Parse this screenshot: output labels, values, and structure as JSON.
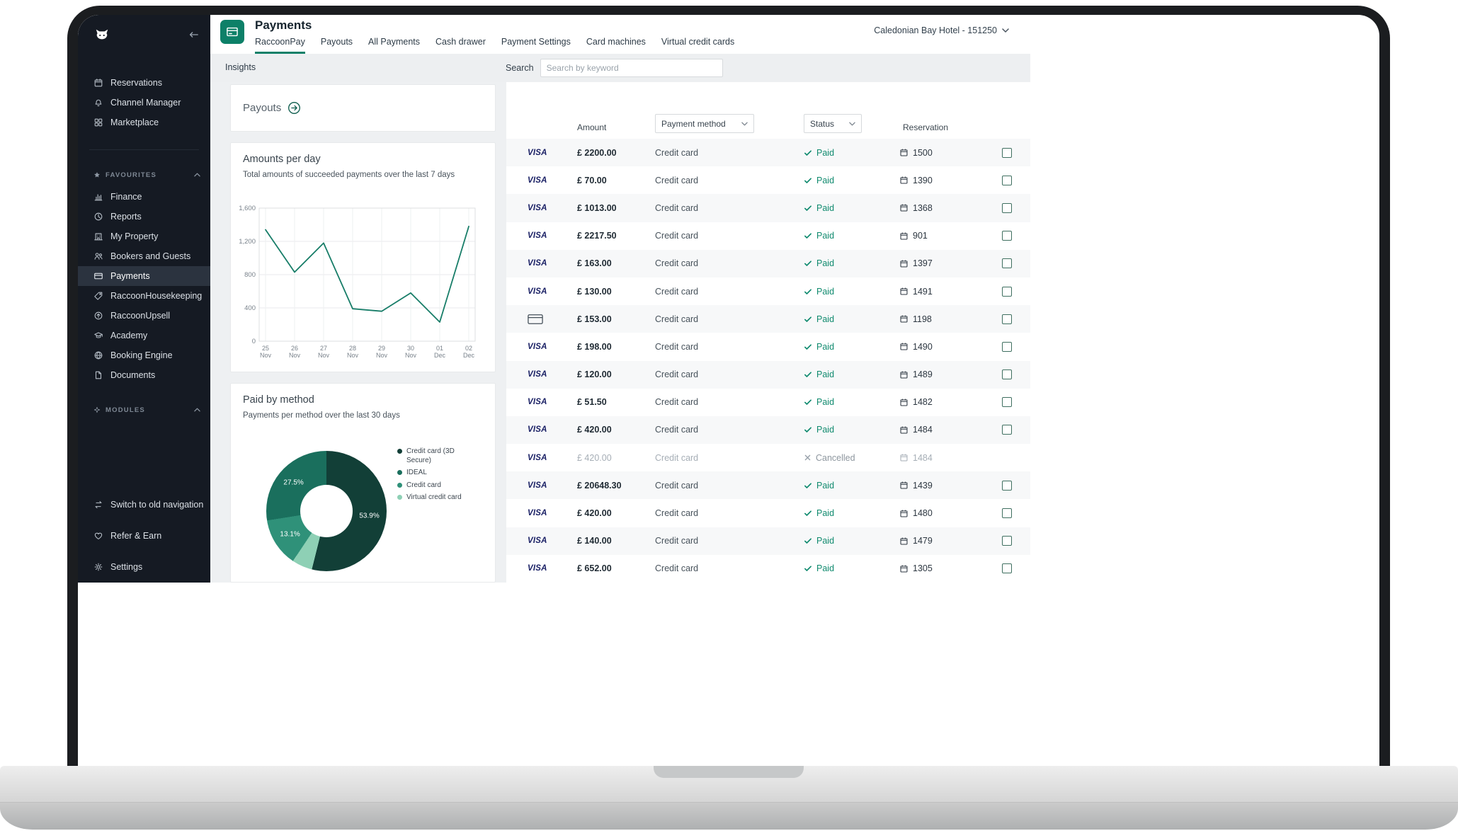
{
  "brand": {
    "teal": "#0d8068",
    "paid_green": "#0f8a6e",
    "sidebar_bg": "#151a23"
  },
  "sidebar": {
    "favourites_header": "FAVOURITES",
    "modules_header": "MODULES",
    "top_items": [
      {
        "label": "Reservations",
        "icon": "calendar"
      },
      {
        "label": "Channel Manager",
        "icon": "bell"
      },
      {
        "label": "Marketplace",
        "icon": "grid"
      }
    ],
    "favourites": [
      {
        "label": "Finance",
        "icon": "finance"
      },
      {
        "label": "Reports",
        "icon": "reports"
      },
      {
        "label": "My Property",
        "icon": "property"
      },
      {
        "label": "Bookers and Guests",
        "icon": "guests"
      },
      {
        "label": "Payments",
        "icon": "payments",
        "active": true
      },
      {
        "label": "RaccoonHousekeeping",
        "icon": "housekeeping"
      },
      {
        "label": "RaccoonUpsell",
        "icon": "upsell"
      },
      {
        "label": "Academy",
        "icon": "academy"
      },
      {
        "label": "Booking Engine",
        "icon": "booking"
      },
      {
        "label": "Documents",
        "icon": "documents"
      }
    ],
    "bottom_items": [
      {
        "label": "Switch to old navigation",
        "icon": "switch"
      },
      {
        "label": "Refer & Earn",
        "icon": "heart"
      },
      {
        "label": "Settings",
        "icon": "gear"
      }
    ]
  },
  "header": {
    "title": "Payments",
    "tabs": [
      "RaccoonPay",
      "Payouts",
      "All Payments",
      "Cash drawer",
      "Payment Settings",
      "Card machines",
      "Virtual credit cards"
    ],
    "active_tab": "RaccoonPay",
    "account": "Caledonian Bay Hotel - 151250"
  },
  "subbar": {
    "insights_label": "Insights",
    "search_label": "Search",
    "search_placeholder": "Search by keyword"
  },
  "insights": {
    "payouts_title": "Payouts"
  },
  "chart_data": [
    {
      "type": "line",
      "title": "Amounts per day",
      "subtitle": "Total amounts of succeeded payments over the last 7 days",
      "x": [
        "25 Nov",
        "26 Nov",
        "27 Nov",
        "28 Nov",
        "29 Nov",
        "30 Nov",
        "01 Dec",
        "02 Dec"
      ],
      "values": [
        1340,
        830,
        1180,
        390,
        360,
        580,
        230,
        1380
      ],
      "ylim": [
        0,
        1600
      ],
      "yticks": [
        0,
        400,
        800,
        1200,
        1600
      ],
      "ytick_labels": [
        "0",
        "400",
        "800",
        "1,200",
        "1,600"
      ],
      "line_color": "#177d68",
      "grid": true
    },
    {
      "type": "pie",
      "title": "Paid by method",
      "subtitle": "Payments per method over the last 30 days",
      "donut": true,
      "segments": [
        {
          "label": "Credit card (3D Secure)",
          "value": 53.9,
          "color": "#123f37",
          "show_label": true
        },
        {
          "label": "IDEAL",
          "value": 27.5,
          "color": "#1a6f5d",
          "show_label": true
        },
        {
          "label": "Credit card",
          "value": 13.1,
          "color": "#2f9179",
          "show_label": true
        },
        {
          "label": "Virtual credit card",
          "value": 5.5,
          "color": "#8ed0b5",
          "show_label": false
        }
      ],
      "draw_order": [
        0,
        3,
        2,
        1
      ],
      "legend_position": "right"
    }
  ],
  "table": {
    "columns": {
      "amount": "Amount",
      "method_filter": "Payment method",
      "status_filter": "Status",
      "reservation": "Reservation"
    },
    "rows": [
      {
        "card": "visa",
        "amount": "£ 2200.00",
        "method": "Credit card",
        "status": "Paid",
        "reservation": "1500"
      },
      {
        "card": "visa",
        "amount": "£ 70.00",
        "method": "Credit card",
        "status": "Paid",
        "reservation": "1390"
      },
      {
        "card": "visa",
        "amount": "£ 1013.00",
        "method": "Credit card",
        "status": "Paid",
        "reservation": "1368"
      },
      {
        "card": "visa",
        "amount": "£ 2217.50",
        "method": "Credit card",
        "status": "Paid",
        "reservation": "901"
      },
      {
        "card": "visa",
        "amount": "£ 163.00",
        "method": "Credit card",
        "status": "Paid",
        "reservation": "1397"
      },
      {
        "card": "visa",
        "amount": "£ 130.00",
        "method": "Credit card",
        "status": "Paid",
        "reservation": "1491"
      },
      {
        "card": "card",
        "amount": "£ 153.00",
        "method": "Credit card",
        "status": "Paid",
        "reservation": "1198"
      },
      {
        "card": "visa",
        "amount": "£ 198.00",
        "method": "Credit card",
        "status": "Paid",
        "reservation": "1490"
      },
      {
        "card": "visa",
        "amount": "£ 120.00",
        "method": "Credit card",
        "status": "Paid",
        "reservation": "1489"
      },
      {
        "card": "visa",
        "amount": "£ 51.50",
        "method": "Credit card",
        "status": "Paid",
        "reservation": "1482"
      },
      {
        "card": "visa",
        "amount": "£ 420.00",
        "method": "Credit card",
        "status": "Paid",
        "reservation": "1484"
      },
      {
        "card": "visa",
        "amount": "£ 420.00",
        "method": "Credit card",
        "status": "Cancelled",
        "reservation": "1484"
      },
      {
        "card": "visa",
        "amount": "£ 20648.30",
        "method": "Credit card",
        "status": "Paid",
        "reservation": "1439"
      },
      {
        "card": "visa",
        "amount": "£ 420.00",
        "method": "Credit card",
        "status": "Paid",
        "reservation": "1480"
      },
      {
        "card": "visa",
        "amount": "£ 140.00",
        "method": "Credit card",
        "status": "Paid",
        "reservation": "1479"
      },
      {
        "card": "visa",
        "amount": "£ 652.00",
        "method": "Credit card",
        "status": "Paid",
        "reservation": "1305"
      }
    ]
  }
}
